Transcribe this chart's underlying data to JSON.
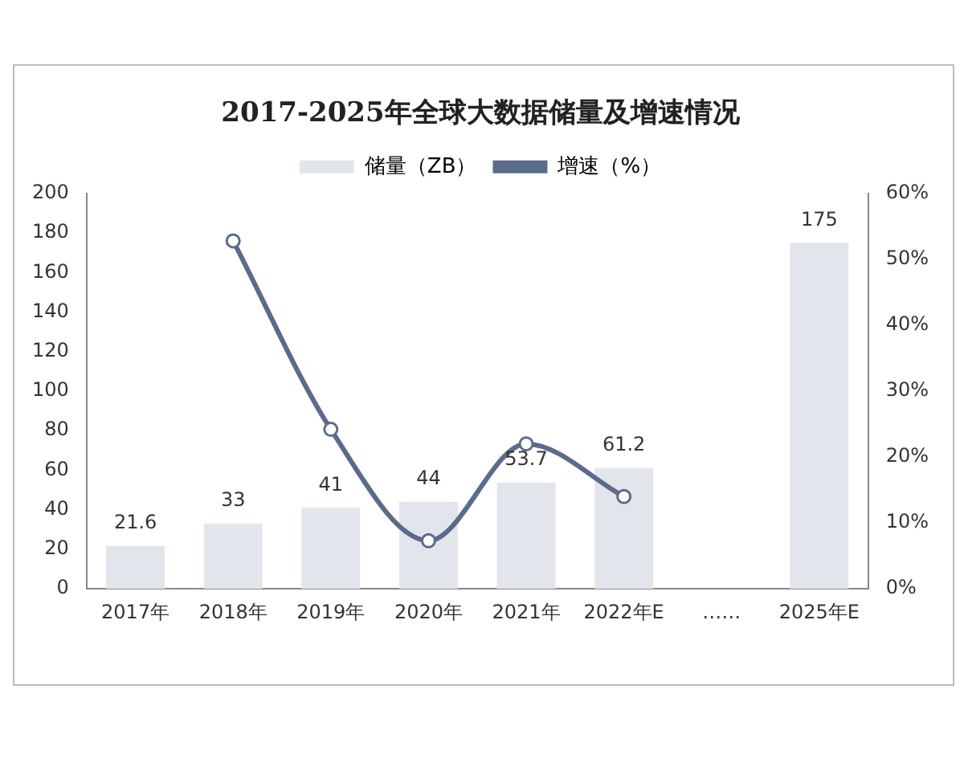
{
  "chart_data": {
    "type": "bar",
    "title": "2017-2025年全球大数据储量及增速情况",
    "categories": [
      "2017年",
      "2018年",
      "2019年",
      "2020年",
      "2021年",
      "2022年E",
      "……",
      "2025年E"
    ],
    "series": [
      {
        "name": "储量（ZB）",
        "color": "#e3e5ec",
        "values": [
          21.6,
          33,
          41,
          44,
          53.7,
          61.2,
          null,
          175
        ],
        "value_labels": [
          "21.6",
          "33",
          "41",
          "44",
          "53.7",
          "61.2",
          null,
          "175"
        ]
      },
      {
        "name": "增速（%）",
        "type": "line",
        "axis": "y2",
        "color": "#5b6b8c",
        "values": [
          null,
          52.8,
          24.2,
          7.3,
          22,
          14,
          null,
          null
        ]
      }
    ],
    "ylim": [
      0,
      200
    ],
    "yticks": [
      0,
      20,
      40,
      60,
      80,
      100,
      120,
      140,
      160,
      180,
      200
    ],
    "y2lim": [
      0,
      60
    ],
    "y2ticks": [
      {
        "value": 0,
        "label": "0%"
      },
      {
        "value": 10,
        "label": "10%"
      },
      {
        "value": 20,
        "label": "20%"
      },
      {
        "value": 30,
        "label": "30%"
      },
      {
        "value": 40,
        "label": "40%"
      },
      {
        "value": 50,
        "label": "50%"
      },
      {
        "value": 60,
        "label": "60%"
      }
    ],
    "grid": false,
    "legend": "top",
    "marker": "circle",
    "line_style": "solid"
  }
}
